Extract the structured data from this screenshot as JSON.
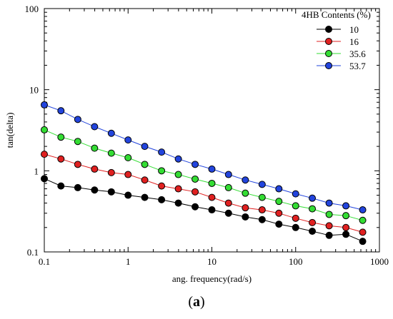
{
  "chart_data": {
    "type": "line",
    "xlabel": "ang. frequency(rad/s)",
    "ylabel": "tan(delta)",
    "xscale": "log",
    "yscale": "log",
    "xlim": [
      0.1,
      1000
    ],
    "ylim": [
      0.1,
      100
    ],
    "x_ticks": [
      "0.1",
      "1",
      "10",
      "100",
      "1000"
    ],
    "y_ticks": [
      "0.1",
      "1",
      "10",
      "100"
    ],
    "legend": {
      "title": "4HB Contents (%)",
      "position": "top-right"
    },
    "x": [
      0.1,
      0.158,
      0.251,
      0.398,
      0.631,
      1,
      1.58,
      2.51,
      3.98,
      6.31,
      10,
      15.8,
      25.1,
      39.8,
      63.1,
      100,
      158,
      251,
      398,
      631
    ],
    "series": [
      {
        "name": "10",
        "color": "#000000",
        "values": [
          0.8,
          0.65,
          0.62,
          0.58,
          0.55,
          0.5,
          0.47,
          0.44,
          0.4,
          0.36,
          0.33,
          0.3,
          0.27,
          0.25,
          0.22,
          0.2,
          0.18,
          0.16,
          0.165,
          0.135
        ]
      },
      {
        "name": "16",
        "color": "#e02020",
        "values": [
          1.6,
          1.4,
          1.2,
          1.05,
          0.95,
          0.9,
          0.77,
          0.65,
          0.6,
          0.55,
          0.47,
          0.4,
          0.35,
          0.33,
          0.3,
          0.26,
          0.23,
          0.21,
          0.2,
          0.175
        ]
      },
      {
        "name": "35.6",
        "color": "#33dd33",
        "values": [
          3.2,
          2.6,
          2.3,
          1.9,
          1.65,
          1.45,
          1.2,
          1.0,
          0.9,
          0.79,
          0.7,
          0.62,
          0.53,
          0.47,
          0.42,
          0.37,
          0.34,
          0.29,
          0.28,
          0.245
        ]
      },
      {
        "name": "53.7",
        "color": "#2244dd",
        "values": [
          6.5,
          5.5,
          4.3,
          3.5,
          2.9,
          2.4,
          2.0,
          1.7,
          1.4,
          1.2,
          1.05,
          0.9,
          0.77,
          0.68,
          0.6,
          0.52,
          0.46,
          0.4,
          0.37,
          0.33
        ]
      }
    ]
  },
  "caption": {
    "open": "(",
    "letter": "a",
    "close": ")"
  }
}
